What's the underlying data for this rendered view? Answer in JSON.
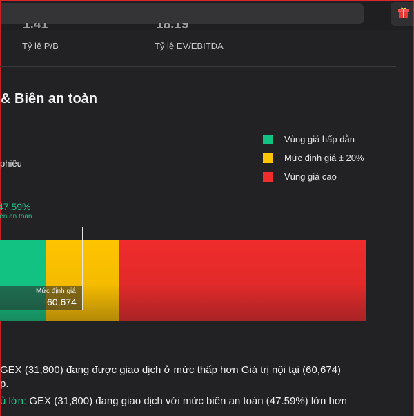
{
  "header": {
    "search_placeholder": "",
    "gift_icon": "gift-icon"
  },
  "metrics": [
    {
      "value": "1.41",
      "label": "Tỷ lệ P/B"
    },
    {
      "value": "18.19",
      "label": "Tỷ lệ EV/EBITDA"
    }
  ],
  "section": {
    "title": "& Biên an toàn",
    "sub_label": "phiếu"
  },
  "legend": [
    {
      "label": "Vùng giá hấp dẫn",
      "color": "#12c283"
    },
    {
      "label": "Mức định giá ± 20%",
      "color": "#ffc400"
    },
    {
      "label": "Vùng giá cao",
      "color": "#f02c2c"
    }
  ],
  "valuation_chart": {
    "margin_of_safety_value": "47.59%",
    "margin_of_safety_label": "iên an toàn",
    "fair_value_label": "Mức định giá",
    "fair_value": "60,674"
  },
  "summary": {
    "line1": "GEX (31,800) đang được giao dịch ở mức thấp hơn Giá trị nội tại (60,674)",
    "line1_cont": "p.",
    "line2_highlight": "ủ lớn:",
    "line2_text": " GEX (31,800) đang giao dịch với mức biên an toàn (47.59%) lớn hơn"
  }
}
